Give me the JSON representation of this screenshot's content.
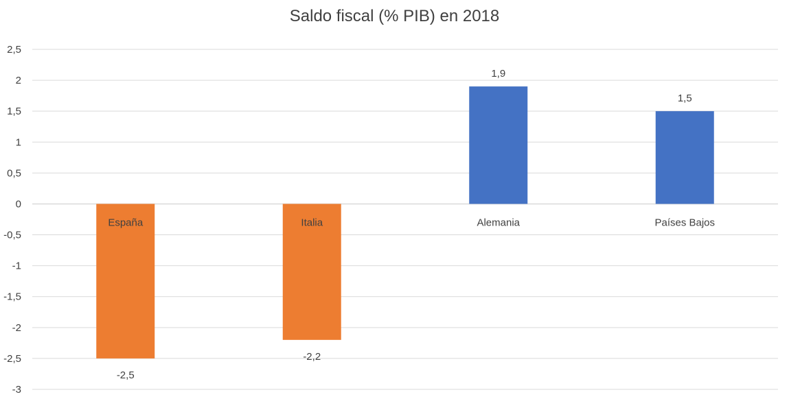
{
  "chart_data": {
    "type": "bar",
    "title": "Saldo fiscal (% PIB) en 2018",
    "xlabel": "",
    "ylabel": "",
    "categories": [
      "España",
      "Italia",
      "Alemania",
      "Países Bajos"
    ],
    "values": [
      -2.5,
      -2.2,
      1.9,
      1.5
    ],
    "value_labels": [
      "-2,5",
      "-2,2",
      "1,9",
      "1,5"
    ],
    "ylim": [
      -3,
      2.5
    ],
    "yticks": [
      2.5,
      2,
      1.5,
      1,
      0.5,
      0,
      -0.5,
      -1,
      -1.5,
      -2,
      -2.5,
      -3
    ],
    "ytick_labels": [
      "2,5",
      "2",
      "1,5",
      "1",
      "0,5",
      "0",
      "-0,5",
      "-1",
      "-1,5",
      "-2",
      "-2,5",
      "-3"
    ],
    "grid": true,
    "legend": "none",
    "colors": {
      "negative": "#ED7D31",
      "positive": "#4472C4",
      "grid": "#D9D9D9",
      "text": "#404040"
    }
  }
}
